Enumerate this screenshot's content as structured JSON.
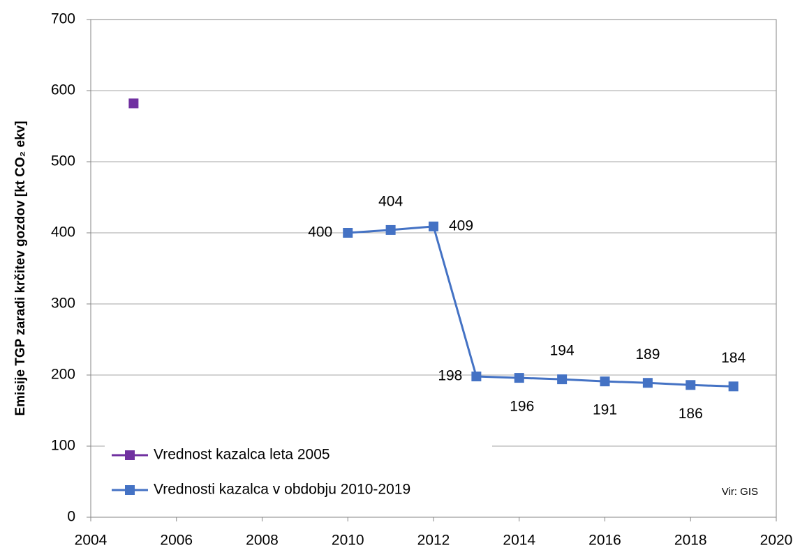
{
  "chart_data": {
    "type": "line",
    "y_label": "Emisije TGP zaradi krčitev gozdov [kt CO₂ ekv]",
    "annotation": "Vir: GIS",
    "series": [
      {
        "name": "Vrednost kazalca leta 2005",
        "color": "#7030a0",
        "x": [
          2005
        ],
        "values": [
          582
        ],
        "line": false
      },
      {
        "name": "Vrednosti kazalca v obdobju 2010-2019",
        "color": "#4472c4",
        "x": [
          2010,
          2011,
          2012,
          2013,
          2014,
          2015,
          2016,
          2017,
          2018,
          2019
        ],
        "values": [
          400,
          404,
          409,
          198,
          196,
          194,
          191,
          189,
          186,
          184
        ],
        "line": true,
        "data_labels": true
      }
    ],
    "xlim": [
      2004,
      2020
    ],
    "xticks": [
      2004,
      2006,
      2008,
      2010,
      2012,
      2014,
      2016,
      2018,
      2020
    ],
    "ylim": [
      0,
      700
    ],
    "yticks": [
      0,
      100,
      200,
      300,
      400,
      500,
      600,
      700
    ],
    "grid": true,
    "legend": "lower left"
  }
}
